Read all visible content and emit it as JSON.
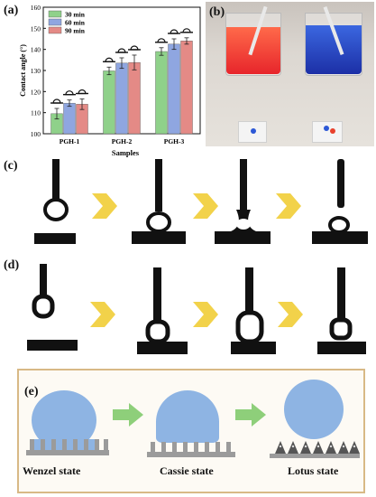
{
  "panels": {
    "a": "(a)",
    "b": "(b)",
    "c": "(c)",
    "d": "(d)",
    "e": "(e)"
  },
  "chart_data": {
    "type": "bar",
    "title": "",
    "xlabel": "Samples",
    "ylabel": "Contact angle (°)",
    "ylim": [
      100,
      160
    ],
    "yticks": [
      "100",
      "110",
      "120",
      "130",
      "140",
      "150",
      "160"
    ],
    "categories": [
      "PGH-1",
      "PGH-2",
      "PGH-3"
    ],
    "legend_position": "top-left",
    "series": [
      {
        "name": "30 min",
        "color": "#8fd18a",
        "values": [
          109.5,
          129.8,
          139.0
        ],
        "errors": [
          2.5,
          1.8,
          1.8
        ]
      },
      {
        "name": "60 min",
        "color": "#8fa6e0",
        "values": [
          114.5,
          133.5,
          142.5
        ],
        "errors": [
          1.5,
          2.5,
          2.5
        ]
      },
      {
        "name": "90 min",
        "color": "#e48a86",
        "values": [
          114.0,
          133.8,
          144.0
        ],
        "errors": [
          2.5,
          3.5,
          1.5
        ]
      }
    ]
  },
  "wetting_states": [
    {
      "label": "Wenzel state"
    },
    {
      "label": "Cassie state"
    },
    {
      "label": "Lotus state"
    }
  ],
  "colors": {
    "chevron": "#f2d24a",
    "arrow": "#8ecf7a",
    "droplet": "#8eb4e3",
    "frame": "#d8b986",
    "needle": "#111111"
  }
}
